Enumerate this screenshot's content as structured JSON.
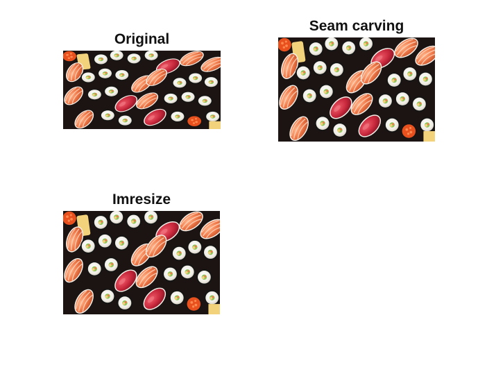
{
  "panels": {
    "original": {
      "title": "Original",
      "image": "sushi-platter-photo"
    },
    "seam_carving": {
      "title": "Seam carving",
      "image": "sushi-platter-photo"
    },
    "imresize": {
      "title": "Imresize",
      "image": "sushi-platter-photo"
    }
  },
  "colors": {
    "background": "#ffffff",
    "title_text": "#111111",
    "salmon": "#f07a4a",
    "tuna": "#c8283c",
    "rice": "#f4f1ea",
    "nori": "#141414",
    "cucumber": "#8fc45a",
    "egg": "#f2d27a",
    "roe": "#e8501e"
  }
}
